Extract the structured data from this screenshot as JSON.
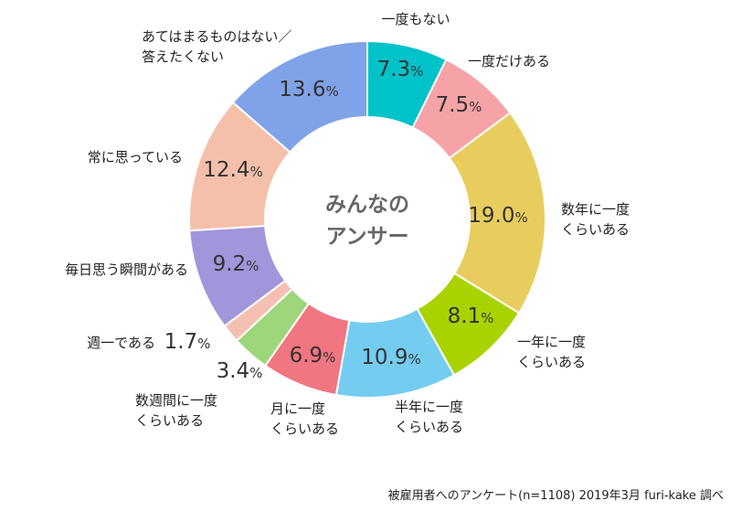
{
  "chart_data": {
    "type": "pie",
    "center_label": [
      "みんなの",
      "アンサー"
    ],
    "source": "被雇用者へのアンケート(n=1108) 2019年3月 furi-kake 調べ",
    "unit": "%",
    "slices": [
      {
        "label": [
          "一度もない"
        ],
        "value": 7.3,
        "color": "#00c2c9"
      },
      {
        "label": [
          "一度だけある"
        ],
        "value": 7.5,
        "color": "#f6a3a8"
      },
      {
        "label": [
          "数年に一度",
          "くらいある"
        ],
        "value": 19.0,
        "color": "#e8cd5e"
      },
      {
        "label": [
          "一年に一度",
          "くらいある"
        ],
        "value": 8.1,
        "color": "#a9d300"
      },
      {
        "label": [
          "半年に一度",
          "くらいある"
        ],
        "value": 10.9,
        "color": "#74cdf0"
      },
      {
        "label": [
          "月に一度",
          "くらいある"
        ],
        "value": 6.9,
        "color": "#f07682"
      },
      {
        "label": [
          "数週間に一度",
          "くらいある"
        ],
        "value": 3.4,
        "color": "#9dd67b"
      },
      {
        "label": [
          "週一である"
        ],
        "value": 1.7,
        "color": "#f5c0b1"
      },
      {
        "label": [
          "毎日思う瞬間がある"
        ],
        "value": 9.2,
        "color": "#a195dc"
      },
      {
        "label": [
          "常に思っている"
        ],
        "value": 12.4,
        "color": "#f5c0aa"
      },
      {
        "label": [
          "あてはまるものはない／",
          "答えたくない"
        ],
        "value": 13.6,
        "color": "#7fa3e8"
      }
    ]
  }
}
